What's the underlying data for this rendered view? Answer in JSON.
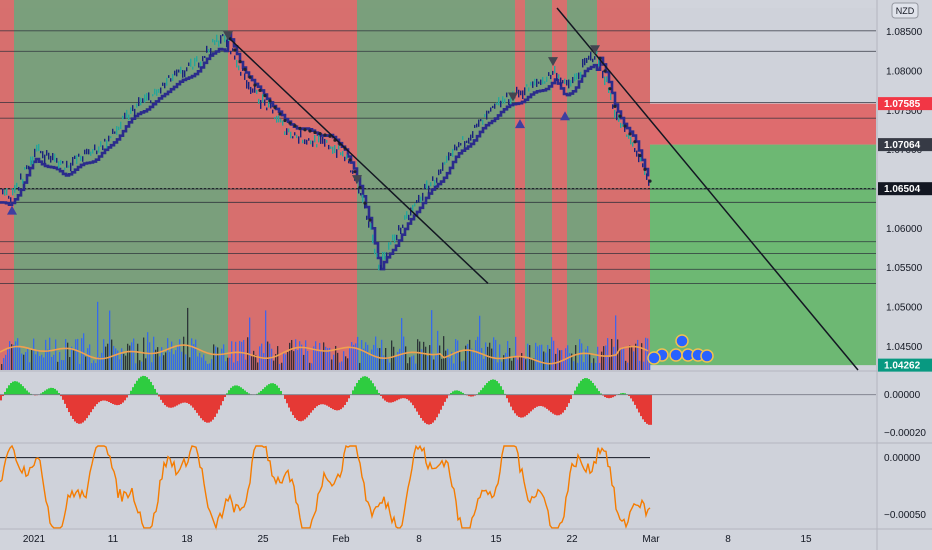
{
  "chart_data": [
    {
      "type": "line",
      "panel": "price",
      "currency_badge": "NZD",
      "y_ticks": [
        1.0425,
        1.045,
        1.05,
        1.055,
        1.06,
        1.065,
        1.07,
        1.075,
        1.08,
        1.085
      ],
      "y_tick_labels": [
        "",
        "1.04500",
        "1.05000",
        "1.05500",
        "1.06000",
        "1.06500",
        "1.07000",
        "1.07500",
        "1.08000",
        "1.08500"
      ],
      "ylim": [
        1.042,
        1.088
      ],
      "x_tick_labels": [
        "2021",
        "11",
        "18",
        "25",
        "Feb",
        "8",
        "15",
        "22",
        "Mar",
        "8",
        "15"
      ],
      "price_labels": [
        {
          "text": "1.07585",
          "value": 1.07585,
          "color": "#f23645"
        },
        {
          "text": "1.07064",
          "value": 1.07064,
          "color": "#363a45"
        },
        {
          "text": "1.06504",
          "value": 1.06504,
          "color": "#131722"
        },
        {
          "text": "1.04262",
          "value": 1.04262,
          "color": "#089981"
        }
      ],
      "horizontal_levels": [
        1.0851,
        1.0825,
        1.076,
        1.074,
        1.065,
        1.0633,
        1.0583,
        1.0568,
        1.0548,
        1.053
      ],
      "regime_bands": [
        {
          "from": 0,
          "to": 14,
          "color": "red"
        },
        {
          "from": 14,
          "to": 228,
          "color": "green"
        },
        {
          "from": 228,
          "to": 357,
          "color": "red"
        },
        {
          "from": 357,
          "to": 385,
          "color": "green"
        },
        {
          "from": 385,
          "to": 515,
          "color": "green"
        },
        {
          "from": 515,
          "to": 525,
          "color": "red"
        },
        {
          "from": 525,
          "to": 552,
          "color": "green"
        },
        {
          "from": 552,
          "to": 567,
          "color": "red"
        },
        {
          "from": 567,
          "to": 597,
          "color": "green"
        },
        {
          "from": 597,
          "to": 650,
          "color": "red"
        }
      ],
      "price_path": [
        [
          0,
          1.0645
        ],
        [
          10,
          1.064
        ],
        [
          20,
          1.066
        ],
        [
          35,
          1.07
        ],
        [
          50,
          1.069
        ],
        [
          65,
          1.068
        ],
        [
          80,
          1.069
        ],
        [
          95,
          1.07
        ],
        [
          110,
          1.0715
        ],
        [
          125,
          1.074
        ],
        [
          140,
          1.076
        ],
        [
          155,
          1.077
        ],
        [
          170,
          1.079
        ],
        [
          185,
          1.08
        ],
        [
          200,
          1.0815
        ],
        [
          210,
          1.083
        ],
        [
          220,
          1.0843
        ],
        [
          228,
          1.0835
        ],
        [
          240,
          1.08
        ],
        [
          255,
          1.077
        ],
        [
          270,
          1.075
        ],
        [
          285,
          1.0725
        ],
        [
          300,
          1.0715
        ],
        [
          315,
          1.071
        ],
        [
          330,
          1.0705
        ],
        [
          345,
          1.069
        ],
        [
          355,
          1.066
        ],
        [
          365,
          1.062
        ],
        [
          372,
          1.059
        ],
        [
          378,
          1.055
        ],
        [
          385,
          1.057
        ],
        [
          395,
          1.059
        ],
        [
          410,
          1.062
        ],
        [
          425,
          1.065
        ],
        [
          440,
          1.067
        ],
        [
          455,
          1.07
        ],
        [
          470,
          1.072
        ],
        [
          485,
          1.074
        ],
        [
          500,
          1.076
        ],
        [
          515,
          1.077
        ],
        [
          530,
          1.078
        ],
        [
          545,
          1.079
        ],
        [
          555,
          1.08
        ],
        [
          565,
          1.078
        ],
        [
          575,
          1.079
        ],
        [
          585,
          1.081
        ],
        [
          595,
          1.0822
        ],
        [
          605,
          1.079
        ],
        [
          615,
          1.0745
        ],
        [
          625,
          1.072
        ],
        [
          635,
          1.07
        ],
        [
          645,
          1.0665
        ],
        [
          650,
          1.065
        ]
      ],
      "trend_lines": [
        {
          "from": [
            228,
            1.0843
          ],
          "to": [
            488,
            1.053
          ]
        },
        {
          "from": [
            557,
            1.088
          ],
          "to": [
            858,
            1.042
          ]
        }
      ],
      "long_position": {
        "from_x": 650,
        "to_x": 876,
        "entry": 1.07064,
        "stop": 1.07585,
        "target": 1.04262
      },
      "volume": {
        "y_max": 100,
        "baseline_level": 20
      }
    },
    {
      "type": "area",
      "panel": "oscillator_1",
      "y_ticks": [
        0.0,
        -0.0002
      ],
      "y_tick_labels": [
        "0.00000",
        "−0.00020"
      ],
      "ylim": [
        -0.00025,
        0.00012
      ]
    },
    {
      "type": "line",
      "panel": "oscillator_2",
      "y_ticks": [
        0.0,
        -0.0005
      ],
      "y_tick_labels": [
        "0.00000",
        "−0.00050"
      ],
      "ylim": [
        -0.00062,
        0.00012
      ],
      "reference_level": 0.0
    }
  ]
}
